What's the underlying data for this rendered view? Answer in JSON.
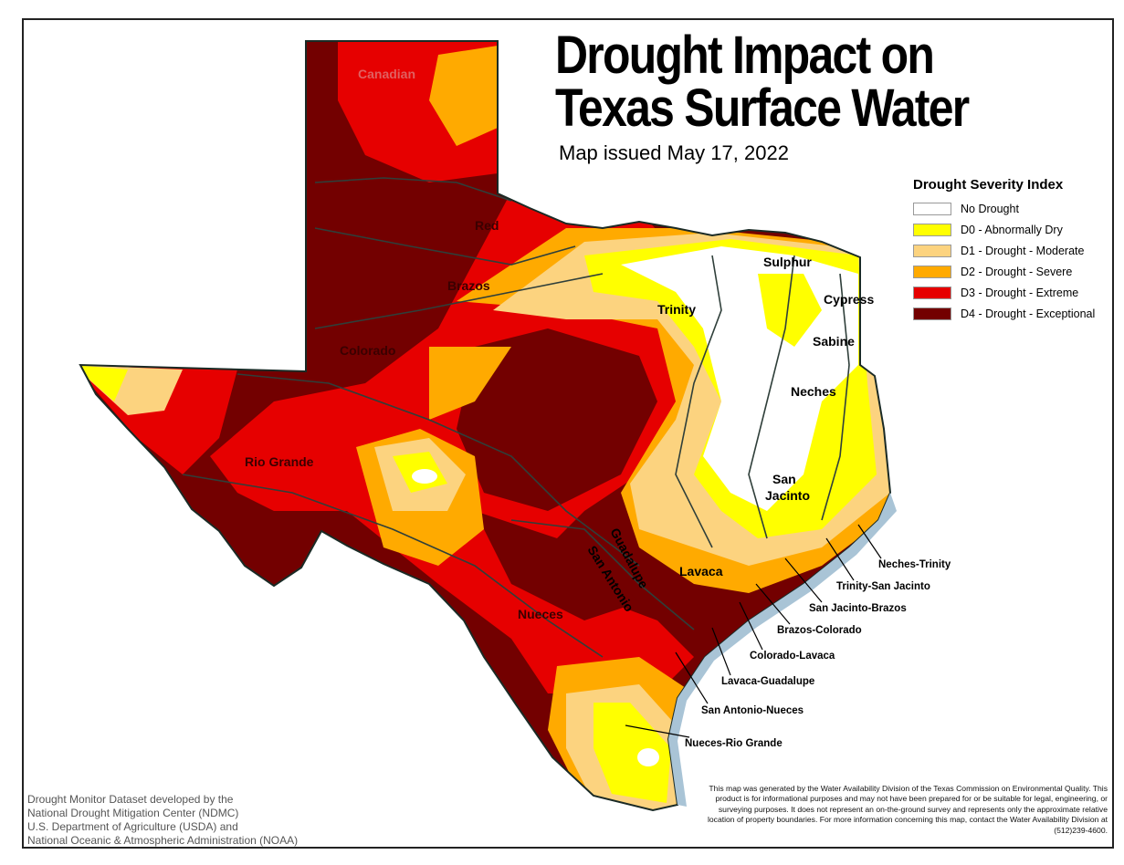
{
  "title_line1": "Drought Impact on",
  "title_line2": "Texas Surface Water",
  "issued": "Map issued May 17, 2022",
  "legend": {
    "title": "Drought Severity Index",
    "items": [
      {
        "label": "No Drought",
        "color": "#ffffff"
      },
      {
        "label": "D0 - Abnormally Dry",
        "color": "#ffff00"
      },
      {
        "label": "D1 - Drought - Moderate",
        "color": "#fcd37f"
      },
      {
        "label": "D2 - Drought - Severe",
        "color": "#ffaa00"
      },
      {
        "label": "D3 - Drought - Extreme",
        "color": "#e60000"
      },
      {
        "label": "D4 - Drought - Exceptional",
        "color": "#730000"
      }
    ]
  },
  "basins": {
    "canadian": "Canadian",
    "red": "Red",
    "brazos": "Brazos",
    "colorado": "Colorado",
    "rio_grande": "Rio Grande",
    "sulphur": "Sulphur",
    "cypress": "Cypress",
    "trinity": "Trinity",
    "sabine": "Sabine",
    "neches": "Neches",
    "san_jacinto_1": "San",
    "san_jacinto_2": "Jacinto",
    "guadalupe": "Guadalupe",
    "san_antonio": "San Antonio",
    "lavaca": "Lavaca",
    "nueces": "Nueces"
  },
  "coastal_basins": [
    "Neches-Trinity",
    "Trinity-San Jacinto",
    "San Jacinto-Brazos",
    "Brazos-Colorado",
    "Colorado-Lavaca",
    "Lavaca-Guadalupe",
    "San Antonio-Nueces",
    "Nueces-Rio Grande"
  ],
  "credit": [
    "Drought Monitor Dataset developed by the",
    "National Drought Mitigation Center (NDMC)",
    "U.S. Department of Agriculture (USDA) and",
    "National Oceanic & Atmospheric Administration (NOAA)"
  ],
  "disclaimer": "This map was generated by the Water Availability Division of the Texas Commission on Environmental Quality. This product is for informational purposes and may not have been prepared for or be suitable for legal, engineering, or surveying purposes. It does not represent an on-the-ground survey and represents only the approximate relative location of property boundaries. For more information concerning this map, contact the Water Availability Division at (512)239-4600."
}
